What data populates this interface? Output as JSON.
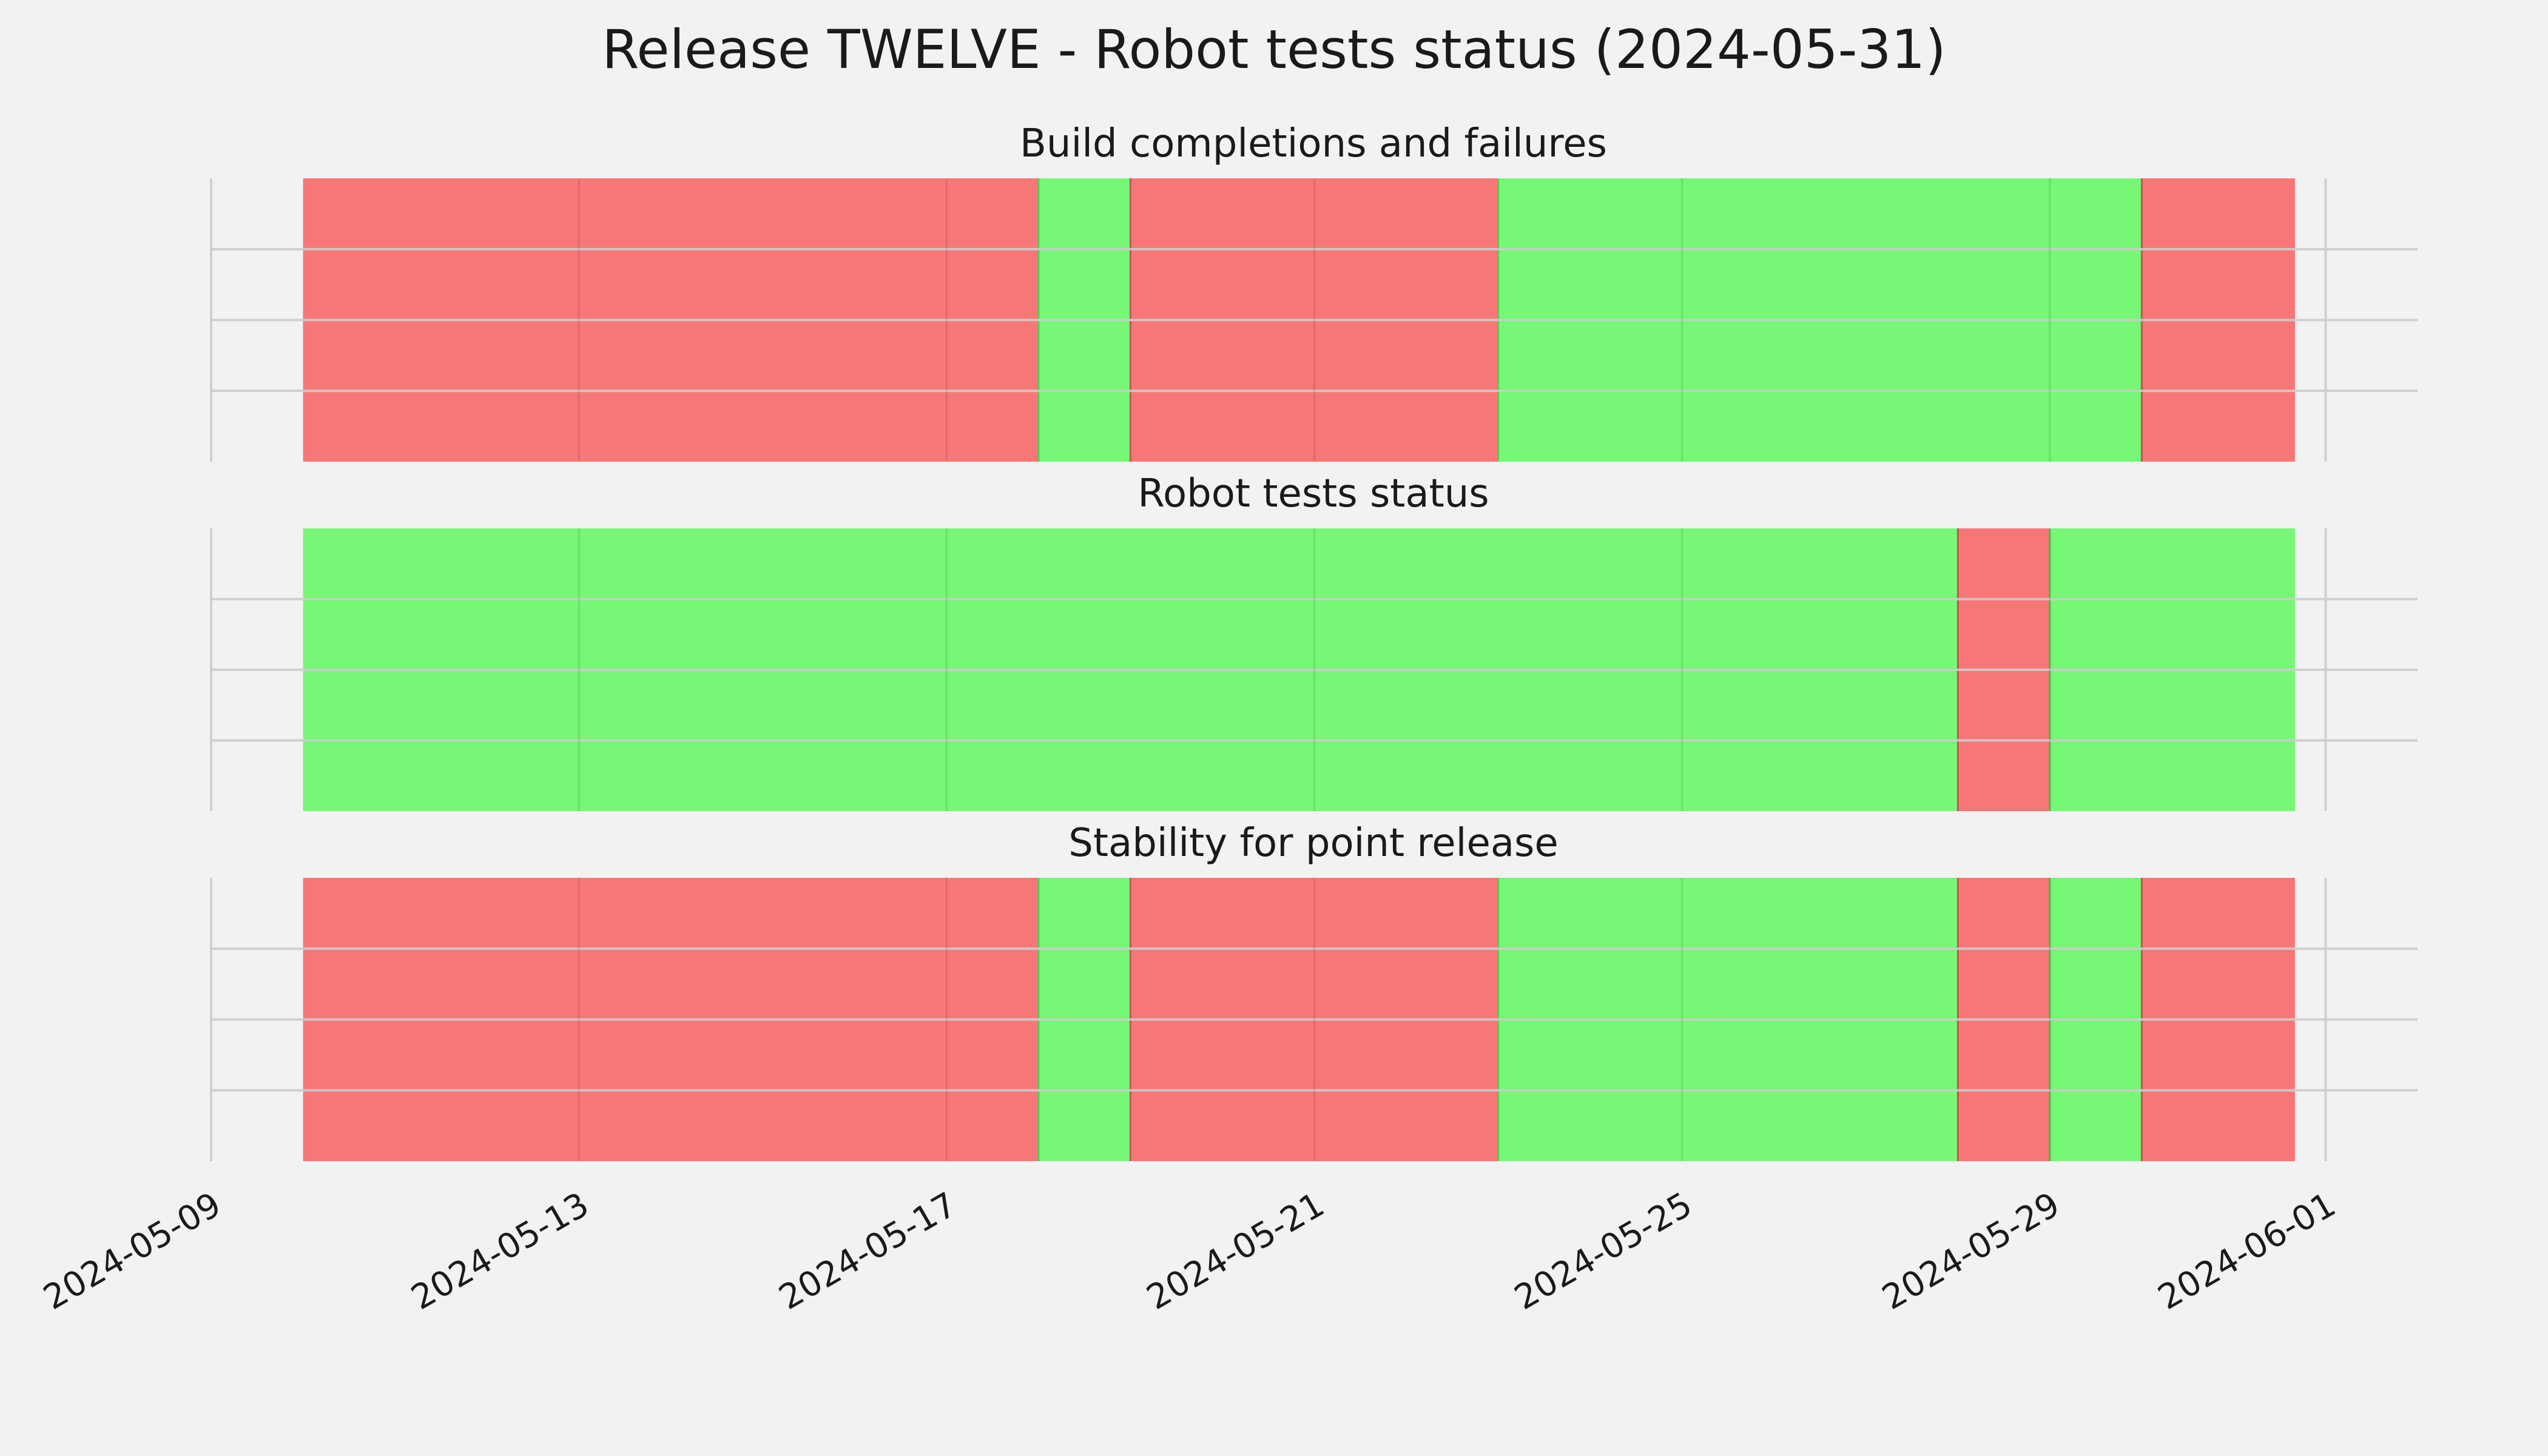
{
  "chart_data": {
    "type": "timeline",
    "title": "Release TWELVE - Robot tests status (2024-05-31)",
    "x_ticks": [
      "2024-05-09",
      "2024-05-13",
      "2024-05-17",
      "2024-05-21",
      "2024-05-25",
      "2024-05-29",
      "2024-06-01"
    ],
    "xlim": [
      "2024-05-09",
      "2024-06-02"
    ],
    "data_range": [
      "2024-05-10",
      "2024-05-31 16:00"
    ],
    "grid": true,
    "colors": {
      "pass": "#76f776",
      "fail": "#f77777"
    },
    "panels": [
      {
        "title": "Build completions and failures",
        "segments": [
          {
            "start": "2024-05-10",
            "end": "2024-05-18",
            "status": "fail"
          },
          {
            "start": "2024-05-18",
            "end": "2024-05-19",
            "status": "pass"
          },
          {
            "start": "2024-05-19",
            "end": "2024-05-23",
            "status": "fail"
          },
          {
            "start": "2024-05-23",
            "end": "2024-05-30",
            "status": "pass"
          },
          {
            "start": "2024-05-30",
            "end": "2024-05-31 16:00",
            "status": "fail"
          }
        ]
      },
      {
        "title": "Robot tests status",
        "segments": [
          {
            "start": "2024-05-10",
            "end": "2024-05-28",
            "status": "pass"
          },
          {
            "start": "2024-05-28",
            "end": "2024-05-29",
            "status": "fail"
          },
          {
            "start": "2024-05-29",
            "end": "2024-05-31 16:00",
            "status": "pass"
          }
        ]
      },
      {
        "title": "Stability for point release",
        "segments": [
          {
            "start": "2024-05-10",
            "end": "2024-05-18",
            "status": "fail"
          },
          {
            "start": "2024-05-18",
            "end": "2024-05-19",
            "status": "pass"
          },
          {
            "start": "2024-05-19",
            "end": "2024-05-23",
            "status": "fail"
          },
          {
            "start": "2024-05-23",
            "end": "2024-05-28",
            "status": "pass"
          },
          {
            "start": "2024-05-28",
            "end": "2024-05-29",
            "status": "fail"
          },
          {
            "start": "2024-05-29",
            "end": "2024-05-30",
            "status": "pass"
          },
          {
            "start": "2024-05-30",
            "end": "2024-05-31 16:00",
            "status": "fail"
          }
        ]
      }
    ]
  }
}
